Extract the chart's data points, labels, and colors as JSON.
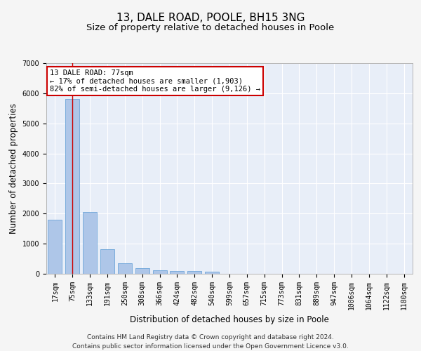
{
  "title": "13, DALE ROAD, POOLE, BH15 3NG",
  "subtitle": "Size of property relative to detached houses in Poole",
  "xlabel": "Distribution of detached houses by size in Poole",
  "ylabel": "Number of detached properties",
  "bar_values": [
    1800,
    5800,
    2050,
    820,
    340,
    180,
    110,
    95,
    85,
    70,
    0,
    0,
    0,
    0,
    0,
    0,
    0,
    0,
    0,
    0,
    0
  ],
  "categories": [
    "17sqm",
    "75sqm",
    "133sqm",
    "191sqm",
    "250sqm",
    "308sqm",
    "366sqm",
    "424sqm",
    "482sqm",
    "540sqm",
    "599sqm",
    "657sqm",
    "715sqm",
    "773sqm",
    "831sqm",
    "889sqm",
    "947sqm",
    "1006sqm",
    "1064sqm",
    "1122sqm",
    "1180sqm"
  ],
  "bar_color": "#aec6e8",
  "bar_edge_color": "#5b9bd5",
  "bar_width": 0.8,
  "ylim": [
    0,
    7000
  ],
  "yticks": [
    0,
    1000,
    2000,
    3000,
    4000,
    5000,
    6000,
    7000
  ],
  "red_line_index": 1,
  "annotation_text": "13 DALE ROAD: 77sqm\n← 17% of detached houses are smaller (1,903)\n82% of semi-detached houses are larger (9,126) →",
  "annotation_box_color": "#ffffff",
  "annotation_border_color": "#cc0000",
  "background_color": "#e8eef8",
  "grid_color": "#ffffff",
  "footer_line1": "Contains HM Land Registry data © Crown copyright and database right 2024.",
  "footer_line2": "Contains public sector information licensed under the Open Government Licence v3.0.",
  "title_fontsize": 11,
  "subtitle_fontsize": 9.5,
  "axis_label_fontsize": 8.5,
  "tick_fontsize": 7,
  "annotation_fontsize": 7.5,
  "footer_fontsize": 6.5
}
